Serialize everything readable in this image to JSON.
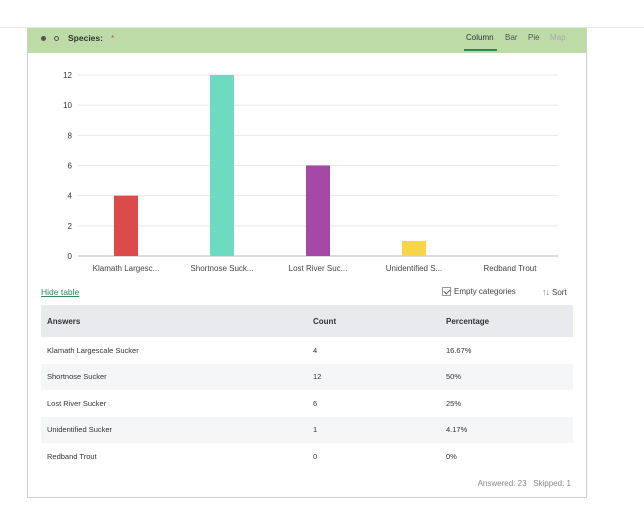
{
  "question": {
    "label": "Species:",
    "required_mark": "*"
  },
  "chart_tabs": [
    {
      "label": "Column",
      "state": "active"
    },
    {
      "label": "Bar",
      "state": "normal"
    },
    {
      "label": "Pie",
      "state": "normal"
    },
    {
      "label": "Map",
      "state": "disabled"
    }
  ],
  "colors": {
    "header_bg": "#bddba7",
    "accent": "#2e8b57",
    "bars": [
      "#dc4b4b",
      "#6ddbc0",
      "#a649a6",
      "#f7d54a",
      "#cccccc"
    ]
  },
  "chart_data": {
    "type": "bar",
    "categories": [
      "Klamath Largesc...",
      "Shortnose Suck...",
      "Lost River Suc...",
      "Unidentified S...",
      "Redband Trout"
    ],
    "values": [
      4,
      12,
      6,
      1,
      0
    ],
    "yticks": [
      0,
      2,
      4,
      6,
      8,
      10,
      12
    ],
    "ylim": [
      0,
      12
    ],
    "grid": true,
    "title": "",
    "xlabel": "",
    "ylabel": ""
  },
  "controls": {
    "hide_table": "Hide table",
    "empty_categories": "Empty categories",
    "sort": "Sort"
  },
  "table": {
    "headers": {
      "answers": "Answers",
      "count": "Count",
      "percentage": "Percentage"
    },
    "rows": [
      {
        "answer": "Klamath Largescale Sucker",
        "count": "4",
        "percentage": "16.67%"
      },
      {
        "answer": "Shortnose Sucker",
        "count": "12",
        "percentage": "50%"
      },
      {
        "answer": "Lost River Sucker",
        "count": "6",
        "percentage": "25%"
      },
      {
        "answer": "Unidentified Sucker",
        "count": "1",
        "percentage": "4.17%"
      },
      {
        "answer": "Redband Trout",
        "count": "0",
        "percentage": "0%"
      }
    ]
  },
  "footer": {
    "answered": "Answered: 23",
    "skipped": "Skipped: 1"
  }
}
